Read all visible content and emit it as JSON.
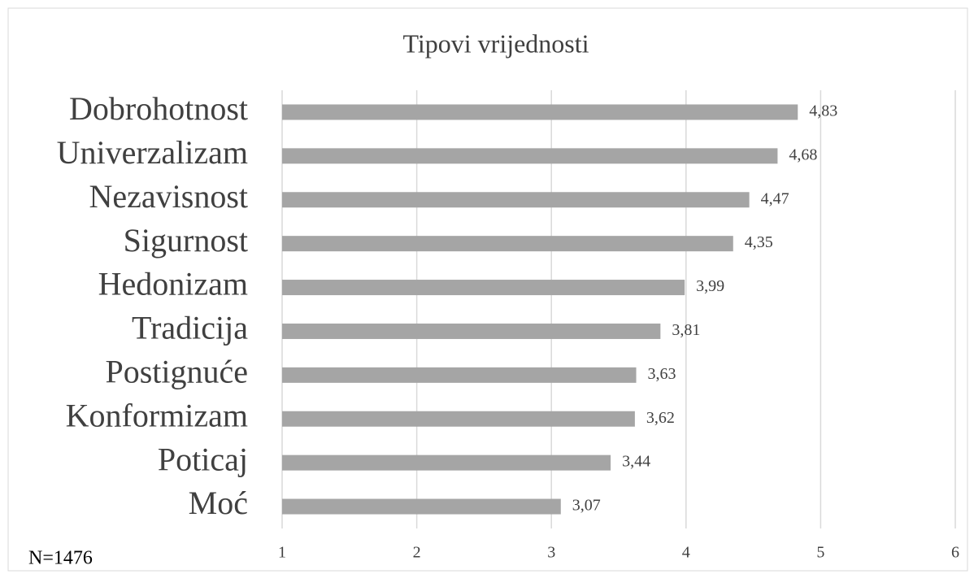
{
  "chart_data": {
    "type": "bar",
    "orientation": "horizontal",
    "title": "Tipovi vrijednosti",
    "categories": [
      "Dobrohotnost",
      "Univerzalizam",
      "Nezavisnost",
      "Sigurnost",
      "Hedonizam",
      "Tradicija",
      "Postignuće",
      "Konformizam",
      "Poticaj",
      "Moć"
    ],
    "values": [
      4.83,
      4.68,
      4.47,
      4.35,
      3.99,
      3.81,
      3.63,
      3.62,
      3.44,
      3.07
    ],
    "value_labels": [
      "4,83",
      "4,68",
      "4,47",
      "4,35",
      "3,99",
      "3,81",
      "3,63",
      "3,62",
      "3,44",
      "3,07"
    ],
    "color": "#a5a5a5",
    "xlim": [
      1,
      6
    ],
    "xticks": [
      1,
      2,
      3,
      4,
      5,
      6
    ],
    "grid": true,
    "annotation": "N=1476"
  }
}
